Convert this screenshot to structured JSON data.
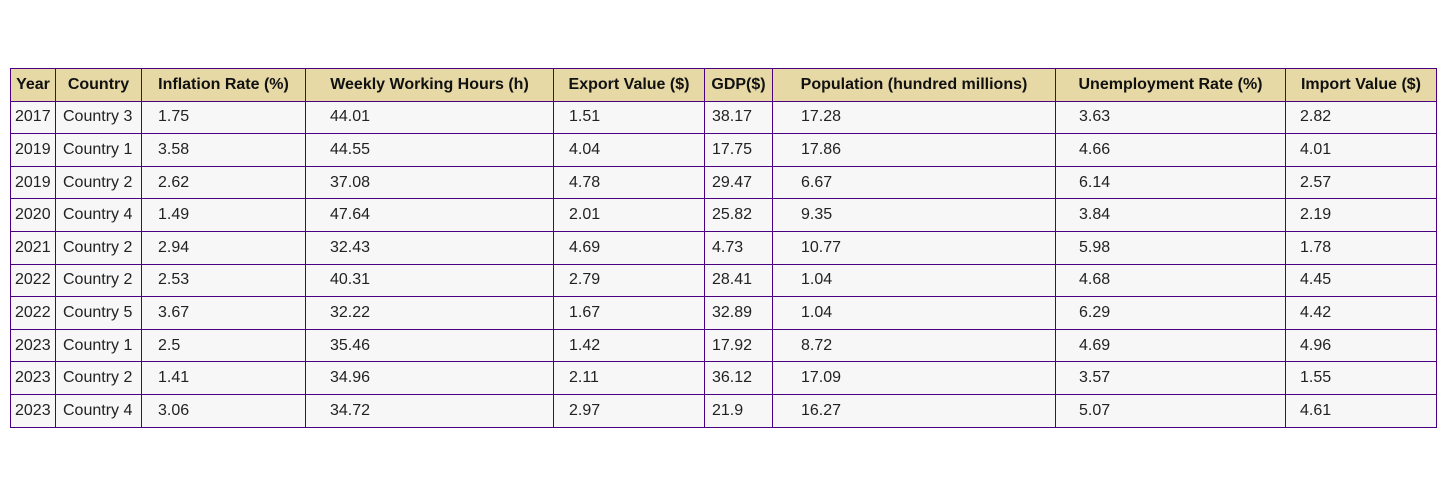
{
  "chart_data": {
    "type": "table",
    "columns": [
      "Year",
      "Country",
      "Inflation Rate (%)",
      "Weekly Working Hours (h)",
      "Export Value ($)",
      "GDP($)",
      "Population (hundred millions)",
      "Unemployment Rate (%)",
      "Import Value ($)"
    ],
    "rows": [
      [
        "2017",
        "Country 3",
        "1.75",
        "44.01",
        "1.51",
        "38.17",
        "17.28",
        "3.63",
        "2.82"
      ],
      [
        "2019",
        "Country 1",
        "3.58",
        "44.55",
        "4.04",
        "17.75",
        "17.86",
        "4.66",
        "4.01"
      ],
      [
        "2019",
        "Country 2",
        "2.62",
        "37.08",
        "4.78",
        "29.47",
        "6.67",
        "6.14",
        "2.57"
      ],
      [
        "2020",
        "Country 4",
        "1.49",
        "47.64",
        "2.01",
        "25.82",
        "9.35",
        "3.84",
        "2.19"
      ],
      [
        "2021",
        "Country 2",
        "2.94",
        "32.43",
        "4.69",
        "4.73",
        "10.77",
        "5.98",
        "1.78"
      ],
      [
        "2022",
        "Country 2",
        "2.53",
        "40.31",
        "2.79",
        "28.41",
        "1.04",
        "4.68",
        "4.45"
      ],
      [
        "2022",
        "Country 5",
        "3.67",
        "32.22",
        "1.67",
        "32.89",
        "1.04",
        "6.29",
        "4.42"
      ],
      [
        "2023",
        "Country 1",
        "2.5",
        "35.46",
        "1.42",
        "17.92",
        "8.72",
        "4.69",
        "4.96"
      ],
      [
        "2023",
        "Country 2",
        "1.41",
        "34.96",
        "2.11",
        "36.12",
        "17.09",
        "3.57",
        "1.55"
      ],
      [
        "2023",
        "Country 4",
        "3.06",
        "34.72",
        "2.97",
        "21.9",
        "16.27",
        "5.07",
        "4.61"
      ]
    ]
  },
  "colors": {
    "header_background": "#e6d9a6",
    "cell_background": "#f7f7f7",
    "border": "#4b0082"
  }
}
